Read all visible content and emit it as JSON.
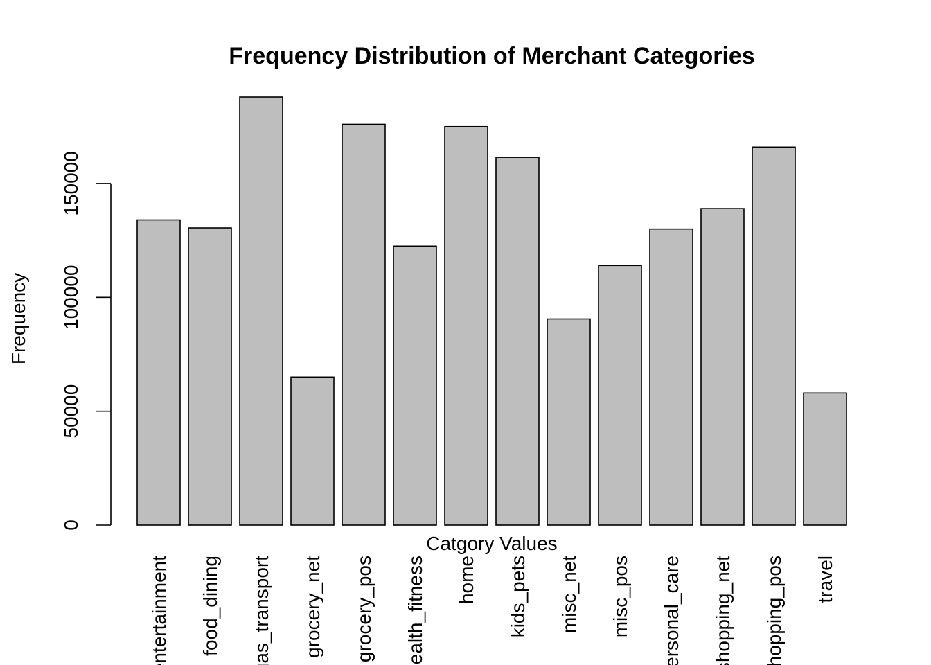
{
  "chart_data": {
    "type": "bar",
    "title": "Frequency Distribution of Merchant Categories",
    "xlabel": "Catgory Values",
    "ylabel": "Frequency",
    "categories": [
      "entertainment",
      "food_dining",
      "gas_transport",
      "grocery_net",
      "grocery_pos",
      "health_fitness",
      "home",
      "kids_pets",
      "misc_net",
      "misc_pos",
      "personal_care",
      "shopping_net",
      "shopping_pos",
      "travel"
    ],
    "values": [
      134000,
      130500,
      188000,
      65000,
      176000,
      122500,
      175000,
      161500,
      90500,
      114000,
      130000,
      139000,
      166000,
      58000
    ],
    "ylim": [
      0,
      195000
    ],
    "yticks": [
      0,
      50000,
      100000,
      150000
    ],
    "bar_color": "#bebebe",
    "grid": false,
    "legend": false
  }
}
